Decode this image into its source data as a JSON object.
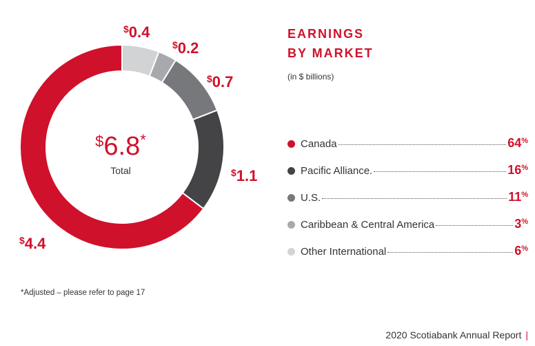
{
  "title_line1": "EARNINGS",
  "title_line2": "BY MARKET",
  "subtitle": "(in $ billions)",
  "center": {
    "currency": "$",
    "value": "6.8",
    "star": "*",
    "label": "Total"
  },
  "footnote": "*Adjusted – please refer to page 17",
  "footer": "2020 Scotiabank Annual Report",
  "legend": [
    {
      "label": "Canada",
      "percent": "64",
      "suffix": "%",
      "color": "#d0112b"
    },
    {
      "label": "Pacific Alliance.",
      "percent": "16",
      "suffix": "%",
      "color": "#444446"
    },
    {
      "label": "U.S.",
      "percent": "11",
      "suffix": "%",
      "color": "#77787b"
    },
    {
      "label": "Caribbean & Central America",
      "percent": "3",
      "suffix": "%",
      "color": "#a7a9ac"
    },
    {
      "label": "Other International",
      "percent": "6",
      "suffix": "%",
      "color": "#d1d3d4"
    }
  ],
  "value_labels": [
    {
      "currency": "$",
      "amount": "4.4"
    },
    {
      "currency": "$",
      "amount": "1.1"
    },
    {
      "currency": "$",
      "amount": "0.7"
    },
    {
      "currency": "$",
      "amount": "0.2"
    },
    {
      "currency": "$",
      "amount": "0.4"
    }
  ],
  "chart_data": {
    "type": "pie",
    "style": "donut",
    "title": "EARNINGS BY MARKET",
    "subtitle": "(in $ billions)",
    "total": 6.8,
    "categories": [
      "Canada",
      "Pacific Alliance",
      "U.S.",
      "Caribbean & Central America",
      "Other International"
    ],
    "values": [
      4.4,
      1.1,
      0.7,
      0.2,
      0.4
    ],
    "percents": [
      64,
      16,
      11,
      3,
      6
    ],
    "colors": [
      "#d0112b",
      "#444446",
      "#77787b",
      "#a7a9ac",
      "#d1d3d4"
    ],
    "order_clockwise_from_top": [
      "Other International",
      "Caribbean & Central America",
      "U.S.",
      "Pacific Alliance",
      "Canada"
    ]
  }
}
